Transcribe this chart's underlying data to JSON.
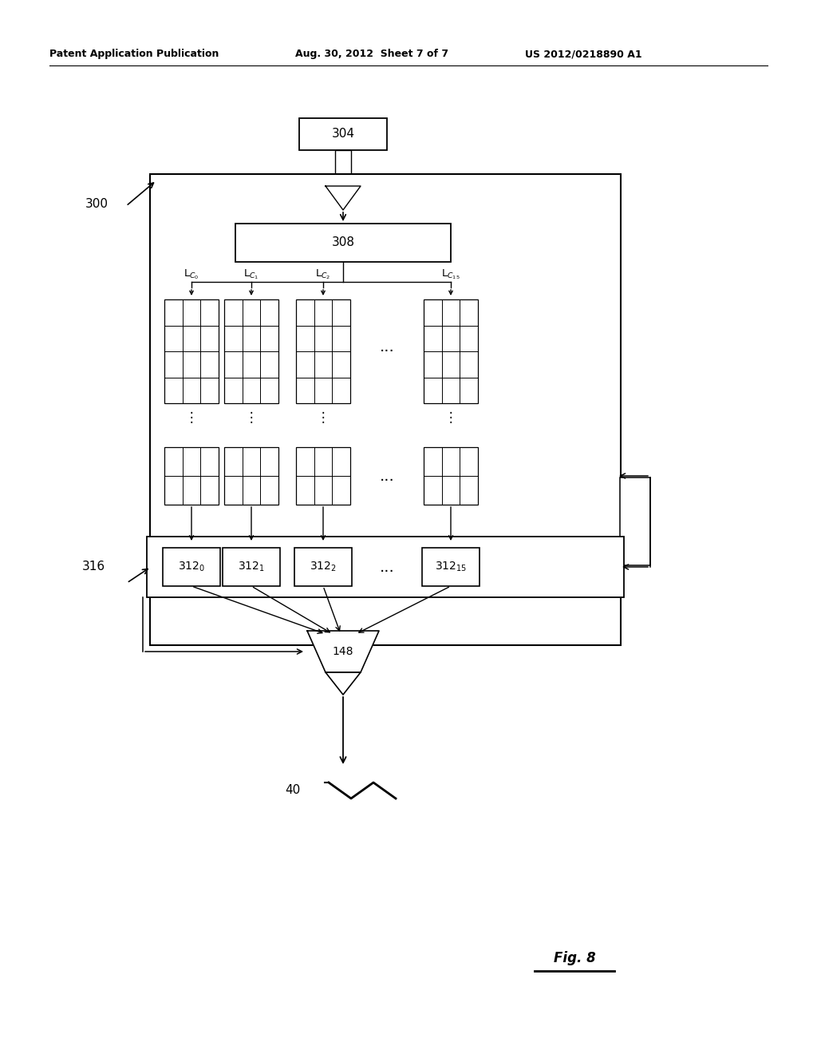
{
  "bg_color": "#ffffff",
  "header_text": "Patent Application Publication",
  "header_date": "Aug. 30, 2012  Sheet 7 of 7",
  "header_patent": "US 2012/0218890 A1",
  "fig_label": "Fig. 8",
  "label_300": "300",
  "label_304": "304",
  "label_308": "308",
  "label_316": "316",
  "label_148": "148",
  "label_40": "40"
}
